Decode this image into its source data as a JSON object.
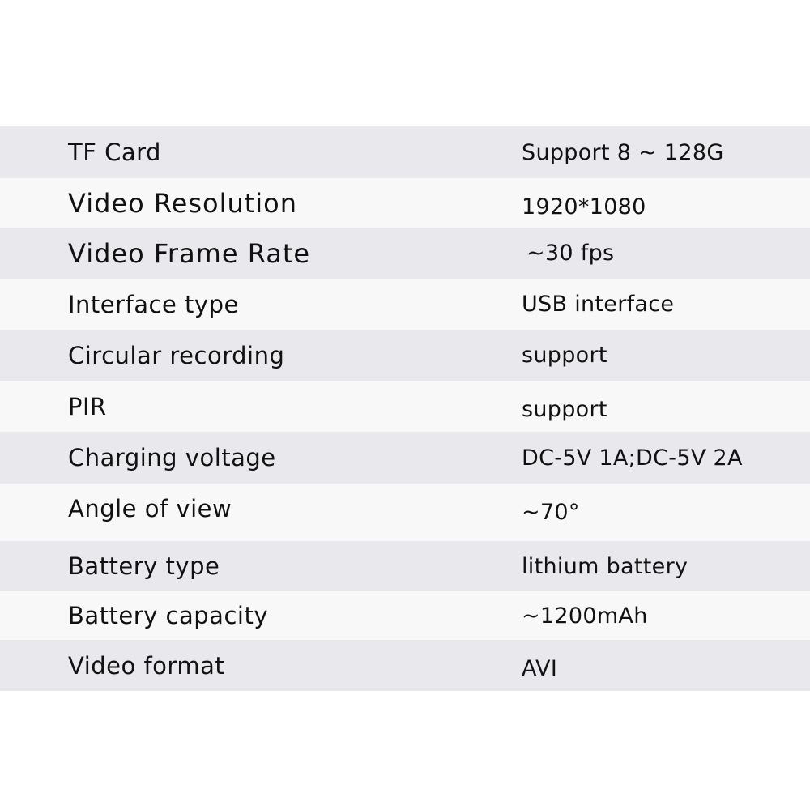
{
  "colors": {
    "row_gray": "#e9e9ed",
    "row_white": "#f8f8f8",
    "text": "#111111"
  },
  "specs": [
    {
      "label": "TF Card",
      "value": "Support 8 ~ 128G"
    },
    {
      "label": "Video Resolution",
      "value": "1920*1080"
    },
    {
      "label": "Video Frame Rate",
      "value": "~30 fps"
    },
    {
      "label": "Interface type",
      "value": "USB interface"
    },
    {
      "label": "Circular recording",
      "value": "support"
    },
    {
      "label": "PIR",
      "value": "support"
    },
    {
      "label": "Charging voltage",
      "value": "DC-5V 1A;DC-5V 2A"
    },
    {
      "label": "Angle of view",
      "value": "~70°"
    },
    {
      "label": "Battery type",
      "value": "lithium battery"
    },
    {
      "label": "Battery capacity",
      "value": "~1200mAh"
    },
    {
      "label": "Video format",
      "value": "AVI"
    }
  ]
}
